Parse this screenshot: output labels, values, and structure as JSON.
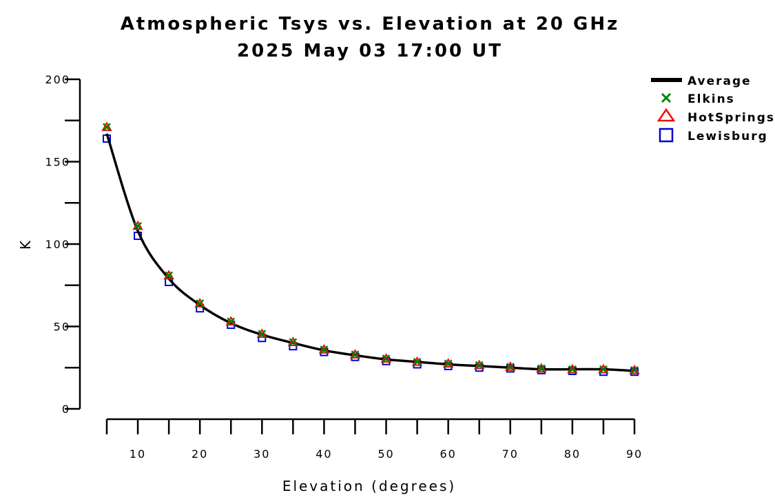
{
  "chart_data": {
    "type": "line",
    "title": "Atmospheric Tsys vs. Elevation at 20 GHz",
    "subtitle": "2025 May 03 17:00 UT",
    "xlabel": "Elevation (degrees)",
    "ylabel": "K",
    "xlim": [
      5,
      90
    ],
    "ylim": [
      0,
      200
    ],
    "x_ticks": [
      10,
      20,
      30,
      40,
      50,
      60,
      70,
      80,
      90
    ],
    "y_ticks": [
      0,
      50,
      100,
      150,
      200
    ],
    "grid": false,
    "legend_position": "top-right",
    "x": [
      5,
      10,
      15,
      20,
      25,
      30,
      35,
      40,
      45,
      50,
      55,
      60,
      65,
      70,
      75,
      80,
      85,
      90
    ],
    "series": [
      {
        "name": "Average",
        "marker": "line",
        "color": "#000000",
        "values": [
          167,
          108,
          79,
          63,
          52,
          45,
          40,
          35.5,
          32.5,
          30,
          28.5,
          27,
          26,
          25,
          24,
          24,
          24,
          23
        ]
      },
      {
        "name": "Elkins",
        "marker": "x",
        "color": "#008000",
        "values": [
          171,
          111,
          81,
          64,
          53,
          45.5,
          40.5,
          36,
          33,
          30.5,
          28.5,
          27.5,
          26.5,
          25.5,
          24.5,
          24,
          24,
          23.5
        ]
      },
      {
        "name": "HotSprings",
        "marker": "triangle",
        "color": "#ff0000",
        "values": [
          171,
          111,
          81,
          64,
          53,
          45.5,
          40.5,
          36,
          33,
          30.5,
          28.5,
          27.5,
          26.5,
          25.5,
          24.5,
          24,
          24,
          23.5
        ]
      },
      {
        "name": "Lewisburg",
        "marker": "square",
        "color": "#0000cc",
        "values": [
          164,
          105,
          77,
          61,
          51,
          43,
          38,
          34.5,
          31.5,
          29,
          27,
          26,
          25,
          24.5,
          23.5,
          23,
          22.5,
          22.5
        ]
      }
    ]
  }
}
